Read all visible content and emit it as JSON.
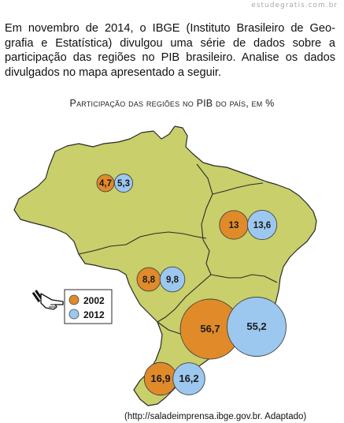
{
  "site": {
    "watermark": "estudegratis.com.br"
  },
  "intro": "Em novembro de 2014, o IBGE (Instituto Brasileiro de Geo- grafia e Estatística) divulgou uma série de dados sobre a participação das regiões no PIB brasileiro. Analise os dados divulgados no mapa apresentado a seguir.",
  "chart_data": {
    "type": "map",
    "title": "Participação das regiões no PIB do país, em %",
    "legend": [
      {
        "label": "2002",
        "color": "#e08a2a"
      },
      {
        "label": "2012",
        "color": "#9cc8f0"
      }
    ],
    "series": [
      {
        "name": "2002",
        "values": [
          4.7,
          13,
          8.8,
          56.7,
          16.9
        ]
      },
      {
        "name": "2012",
        "values": [
          5.3,
          13.6,
          9.8,
          55.2,
          16.2
        ]
      }
    ],
    "regions": [
      {
        "v2002": "4,7",
        "v2012": "5,3"
      },
      {
        "v2002": "13",
        "v2012": "13,6"
      },
      {
        "v2002": "8,8",
        "v2012": "9,8"
      },
      {
        "v2002": "56,7",
        "v2012": "55,2"
      },
      {
        "v2002": "16,9",
        "v2012": "16,2"
      }
    ],
    "legend_placement": "left"
  },
  "colors": {
    "map_fill": "#c9cf6a",
    "border": "#2a2a2a",
    "c2002": "#e08a2a",
    "c2012": "#9cc8f0"
  },
  "source": "(http://saladeimprensa.ibge.gov.br. Adaptado)"
}
